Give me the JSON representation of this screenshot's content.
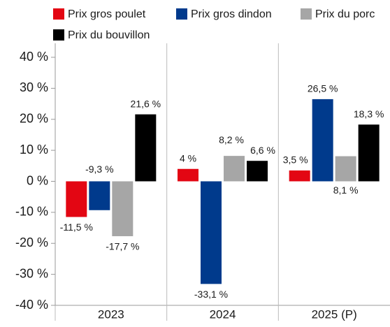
{
  "chart_data": {
    "type": "bar",
    "categories": [
      "2023",
      "2024",
      "2025 (P)"
    ],
    "series": [
      {
        "name": "Prix gros poulet",
        "color": "#e30613",
        "values": [
          -11.5,
          4,
          3.5
        ],
        "value_labels": [
          "-11,5 %",
          "4 %",
          "3,5 %"
        ]
      },
      {
        "name": "Prix gros dindon",
        "color": "#003a8c",
        "values": [
          -9.3,
          -33.1,
          26.5
        ],
        "value_labels": [
          "-9,3 %",
          "-33,1 %",
          "26,5 %"
        ]
      },
      {
        "name": "Prix du porc",
        "color": "#a6a6a6",
        "values": [
          -17.7,
          8.2,
          8.1
        ],
        "value_labels": [
          "-17,7 %",
          "8,2 %",
          "8,1 %"
        ]
      },
      {
        "name": "Prix du bouvillon",
        "color": "#000000",
        "values": [
          21.6,
          6.6,
          18.3
        ],
        "value_labels": [
          "21,6 %",
          "6,6 %",
          "18,3 %"
        ]
      }
    ],
    "ylim": [
      -40,
      40
    ],
    "yticks": [
      {
        "value": -40,
        "label": "-40 %"
      },
      {
        "value": -30,
        "label": "-30 %"
      },
      {
        "value": -20,
        "label": "-20 %"
      },
      {
        "value": -10,
        "label": "-10 %"
      },
      {
        "value": 0,
        "label": "0 %"
      },
      {
        "value": 10,
        "label": "10 %"
      },
      {
        "value": 20,
        "label": "20 %"
      },
      {
        "value": 30,
        "label": "30 %"
      },
      {
        "value": 40,
        "label": "40 %"
      }
    ],
    "grid": false
  }
}
